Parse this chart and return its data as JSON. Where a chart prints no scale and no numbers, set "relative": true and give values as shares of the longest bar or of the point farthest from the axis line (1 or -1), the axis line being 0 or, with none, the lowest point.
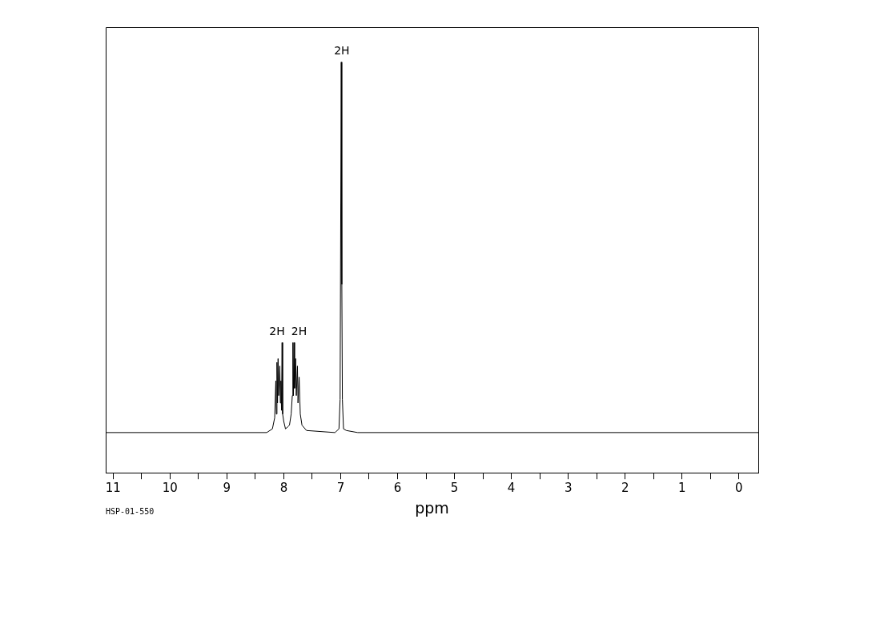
{
  "chart_data": {
    "type": "line",
    "relative": true,
    "xlabel": "ppm",
    "xlim": [
      11.13,
      -0.34
    ],
    "xticks": [
      11,
      {
        "value": 10.5,
        "label": null
      },
      10,
      {
        "value": 9.5,
        "label": null
      },
      9,
      {
        "value": 8.5,
        "label": null
      },
      8,
      {
        "value": 7.5,
        "label": null
      },
      7,
      {
        "value": 6.5,
        "label": null
      },
      6,
      {
        "value": 5.5,
        "label": null
      },
      5,
      {
        "value": 4.5,
        "label": null
      },
      4,
      {
        "value": 3.5,
        "label": null
      },
      3,
      {
        "value": 2.5,
        "label": null
      },
      2,
      {
        "value": 1.5,
        "label": null
      },
      1,
      {
        "value": 0.5,
        "label": null
      },
      0
    ],
    "grid": false,
    "legend": false,
    "marker": "none",
    "line_style": "solid",
    "series": [
      {
        "color": "#000000",
        "x": [
          11.13,
          8.3,
          8.2,
          8.16,
          8.14,
          8.13,
          8.12,
          8.11,
          8.1,
          8.09,
          8.07,
          8.06,
          8.05,
          8.04,
          8.03,
          8.02,
          8.0,
          7.97,
          7.93,
          7.9,
          7.87,
          7.85,
          7.84,
          7.83,
          7.82,
          7.81,
          7.79,
          7.78,
          7.76,
          7.75,
          7.73,
          7.71,
          7.68,
          7.6,
          7.1,
          7.03,
          7.01,
          6.99,
          6.98,
          6.97,
          6.95,
          6.9,
          6.7,
          -0.34
        ],
        "values": [
          0.098,
          0.098,
          0.107,
          0.134,
          0.224,
          0.143,
          0.269,
          0.17,
          0.278,
          0.188,
          0.26,
          0.17,
          0.224,
          0.152,
          0.317,
          0.143,
          0.125,
          0.107,
          0.112,
          0.116,
          0.143,
          0.188,
          0.317,
          0.188,
          0.317,
          0.206,
          0.278,
          0.188,
          0.26,
          0.17,
          0.233,
          0.143,
          0.116,
          0.103,
          0.098,
          0.107,
          0.179,
          1,
          0.459,
          0.179,
          0.107,
          0.103,
          0.098,
          0.098
        ]
      }
    ],
    "annotations": [
      {
        "text": "2H",
        "x": 6.98,
        "y": 1
      },
      {
        "text": "2H",
        "x": 8.03,
        "y": 0.317
      },
      {
        "text": "2H",
        "x": 7.82,
        "y": 0.317
      },
      "HSP-01-550"
    ]
  }
}
